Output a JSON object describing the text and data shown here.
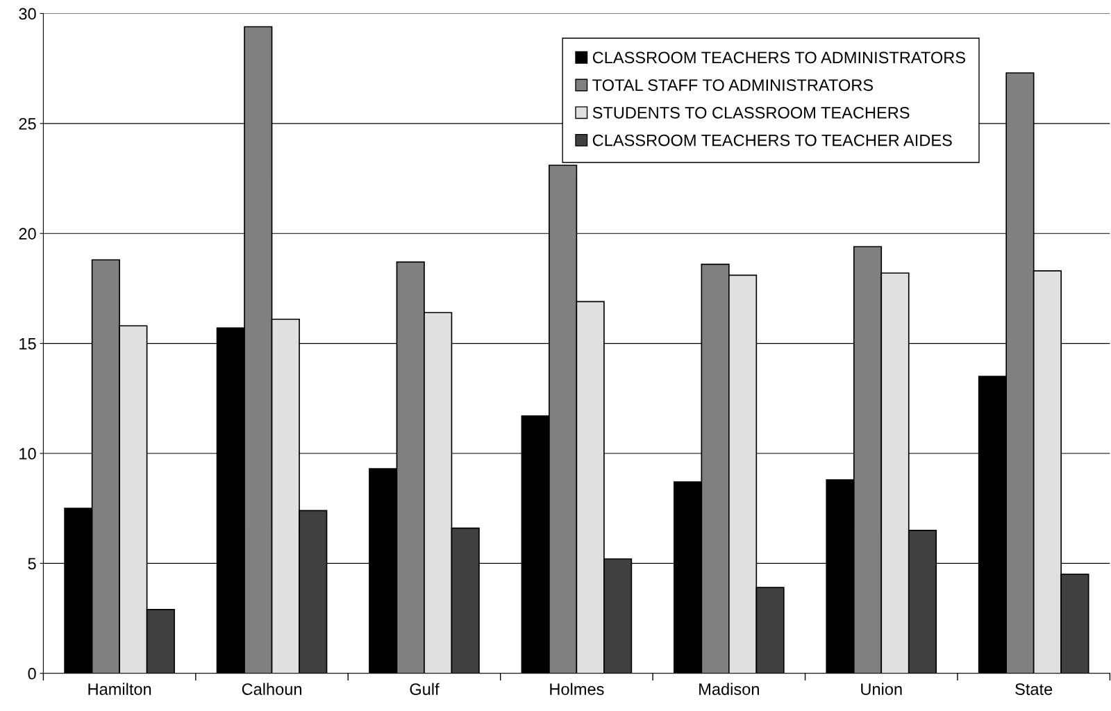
{
  "chart_data": {
    "type": "bar",
    "categories": [
      "Hamilton",
      "Calhoun",
      "Gulf",
      "Holmes",
      "Madison",
      "Union",
      "State"
    ],
    "series": [
      {
        "name": "CLASSROOM TEACHERS TO ADMINISTRATORS",
        "color": "#000000",
        "values": [
          7.5,
          15.7,
          9.3,
          11.7,
          8.7,
          8.8,
          13.5
        ]
      },
      {
        "name": "TOTAL STAFF TO ADMINISTRATORS",
        "color": "#808080",
        "values": [
          18.8,
          29.4,
          18.7,
          23.1,
          18.6,
          19.4,
          27.3
        ]
      },
      {
        "name": "STUDENTS TO CLASSROOM TEACHERS",
        "color": "#e0e0e0",
        "values": [
          15.8,
          16.1,
          16.4,
          16.9,
          18.1,
          18.2,
          18.3
        ]
      },
      {
        "name": "CLASSROOM TEACHERS TO TEACHER AIDES",
        "color": "#404040",
        "values": [
          2.9,
          7.4,
          6.6,
          5.2,
          3.9,
          6.5,
          4.5
        ]
      }
    ],
    "ylim": [
      0,
      30
    ],
    "yticks": [
      0,
      5,
      10,
      15,
      20,
      25,
      30
    ],
    "grid": "y",
    "legend": "top right"
  }
}
